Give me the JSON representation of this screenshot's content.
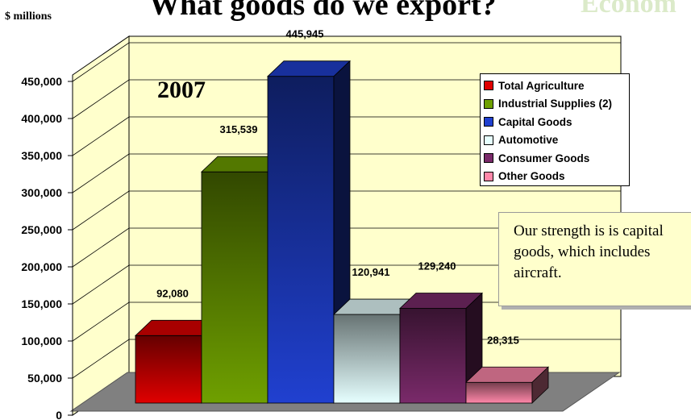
{
  "unit_label": "$ millions",
  "title": "What goods do we export?",
  "watermark": "Econom",
  "callout": "Our strength is is capital goods, which includes aircraft.",
  "chart_data": {
    "type": "bar",
    "title": "What goods do we export?",
    "subtitle": "2007",
    "ylabel": "$ millions",
    "xlabel": "",
    "ylim": [
      0,
      450000
    ],
    "yticks": [
      "0",
      "50,000",
      "100,000",
      "150,000",
      "200,000",
      "250,000",
      "300,000",
      "350,000",
      "400,000",
      "450,000"
    ],
    "grid": true,
    "legend_position": "top-right",
    "three_d": true,
    "categories": [
      "Total Agriculture",
      "Industrial Supplies (2)",
      "Capital Goods",
      "Automotive",
      "Consumer Goods",
      "Other Goods"
    ],
    "values": [
      92080,
      315539,
      445945,
      120941,
      129240,
      28315
    ],
    "value_labels": [
      "92,080",
      "315,539",
      "445,945",
      "120,941",
      "129,240",
      "28,315"
    ],
    "colors": {
      "Total Agriculture": "#e00000",
      "Industrial Supplies (2)": "#6fa000",
      "Capital Goods": "#2040d0",
      "Automotive": "#e6ffff",
      "Consumer Goods": "#7a2a6a",
      "Other Goods": "#ff88aa"
    }
  }
}
